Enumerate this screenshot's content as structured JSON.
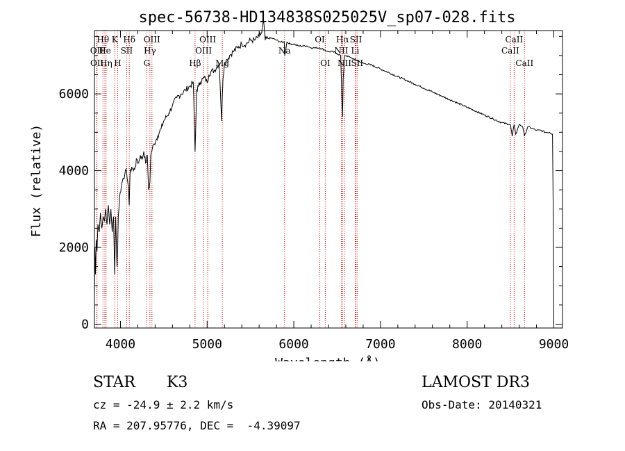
{
  "chart_data": {
    "type": "line",
    "title": "spec-56738-HD134838S025025V_sp07-028.fits",
    "xlabel": "Wavelength (Å)",
    "ylabel": "Flux (relative)",
    "xlim": [
      3700,
      9100
    ],
    "ylim": [
      -100,
      7650
    ],
    "xticks": [
      4000,
      5000,
      6000,
      7000,
      8000,
      9000
    ],
    "yticks": [
      0,
      2000,
      4000,
      6000
    ],
    "series": [
      {
        "name": "flux",
        "x": [
          3700,
          3705,
          3712,
          3720,
          3730,
          3740,
          3755,
          3770,
          3785,
          3800,
          3815,
          3830,
          3845,
          3860,
          3875,
          3890,
          3905,
          3920,
          3933,
          3945,
          3960,
          3968,
          3975,
          3990,
          4010,
          4030,
          4050,
          4070,
          4090,
          4101,
          4110,
          4130,
          4150,
          4170,
          4190,
          4210,
          4230,
          4250,
          4270,
          4290,
          4310,
          4325,
          4340,
          4350,
          4370,
          4390,
          4410,
          4430,
          4450,
          4470,
          4500,
          4530,
          4560,
          4600,
          4650,
          4700,
          4750,
          4800,
          4840,
          4861,
          4880,
          4900,
          4920,
          4950,
          4980,
          5000,
          5020,
          5050,
          5080,
          5110,
          5140,
          5167,
          5183,
          5200,
          5230,
          5260,
          5300,
          5350,
          5400,
          5450,
          5500,
          5550,
          5600,
          5630,
          5650,
          5670,
          5700,
          5750,
          5800,
          5850,
          5890,
          5896,
          5920,
          5960,
          6000,
          6050,
          6100,
          6150,
          6200,
          6250,
          6300,
          6350,
          6400,
          6450,
          6500,
          6540,
          6555,
          6563,
          6570,
          6585,
          6600,
          6650,
          6700,
          6750,
          6800,
          6900,
          7000,
          7100,
          7200,
          7300,
          7400,
          7500,
          7600,
          7700,
          7800,
          7900,
          8000,
          8100,
          8200,
          8300,
          8400,
          8498,
          8520,
          8542,
          8560,
          8600,
          8640,
          8662,
          8700,
          8750,
          8800,
          8850,
          8900,
          8950,
          8985,
          8993,
          8997,
          9000
        ],
        "values": [
          700,
          2000,
          1300,
          2200,
          1900,
          2600,
          2400,
          2900,
          2500,
          2800,
          2700,
          3000,
          2600,
          3100,
          2600,
          3000,
          2400,
          2800,
          1300,
          2800,
          1500,
          2000,
          2800,
          3300,
          3600,
          3800,
          3900,
          4000,
          3600,
          3100,
          3900,
          4100,
          4000,
          4100,
          4300,
          4200,
          4400,
          4300,
          4500,
          4200,
          4400,
          3500,
          3700,
          4400,
          4600,
          4700,
          4800,
          4900,
          5000,
          5100,
          5300,
          5400,
          5500,
          5700,
          5900,
          6000,
          6100,
          6200,
          6300,
          4500,
          6100,
          6200,
          6300,
          6400,
          6400,
          6300,
          6500,
          6600,
          6600,
          6700,
          6800,
          5300,
          6400,
          6800,
          6900,
          7000,
          7100,
          7200,
          7300,
          7300,
          7400,
          7400,
          7500,
          7600,
          7900,
          7400,
          7450,
          7450,
          7400,
          7350,
          7350,
          7000,
          7350,
          7300,
          7300,
          7250,
          7250,
          7250,
          7200,
          7200,
          7200,
          7150,
          7100,
          7100,
          7050,
          7000,
          5900,
          5400,
          6400,
          7000,
          7000,
          6950,
          6900,
          6850,
          6800,
          6750,
          6650,
          6550,
          6450,
          6350,
          6250,
          6150,
          6050,
          5950,
          5850,
          5750,
          5650,
          5550,
          5450,
          5350,
          5250,
          5200,
          4900,
          5200,
          4950,
          5200,
          5150,
          4900,
          5150,
          5100,
          5050,
          5050,
          5000,
          5000,
          4950,
          3000,
          1800,
          0
        ]
      }
    ],
    "line_markers": [
      {
        "label": "Hθ",
        "wavelength": 3798,
        "row": 1
      },
      {
        "label": "OII",
        "wavelength": 3727,
        "row": 2
      },
      {
        "label": "OII",
        "wavelength": 3729,
        "row": 3
      },
      {
        "label": "He",
        "wavelength": 3820,
        "row": 2
      },
      {
        "label": "Hη",
        "wavelength": 3835,
        "row": 3
      },
      {
        "label": "K",
        "wavelength": 3934,
        "row": 1
      },
      {
        "label": "SII",
        "wavelength": 4072,
        "row": 2
      },
      {
        "label": "Hδ",
        "wavelength": 4102,
        "row": 1
      },
      {
        "label": "H",
        "wavelength": 3968,
        "row": 3
      },
      {
        "label": "OIII",
        "wavelength": 4363,
        "row": 1
      },
      {
        "label": "Hγ",
        "wavelength": 4340,
        "row": 2
      },
      {
        "label": "G",
        "wavelength": 4305,
        "row": 3
      },
      {
        "label": "OIII",
        "wavelength": 5007,
        "row": 1
      },
      {
        "label": "OIII",
        "wavelength": 4959,
        "row": 2
      },
      {
        "label": "Hβ",
        "wavelength": 4861,
        "row": 3
      },
      {
        "label": "Mg",
        "wavelength": 5175,
        "row": 3
      },
      {
        "label": "Na",
        "wavelength": 5893,
        "row": 2
      },
      {
        "label": "OI",
        "wavelength": 6300,
        "row": 1
      },
      {
        "label": "OI",
        "wavelength": 6363,
        "row": 3
      },
      {
        "label": "Hα",
        "wavelength": 6563,
        "row": 1
      },
      {
        "label": "NII",
        "wavelength": 6548,
        "row": 2
      },
      {
        "label": "NII",
        "wavelength": 6584,
        "row": 3
      },
      {
        "label": "SII",
        "wavelength": 6717,
        "row": 1
      },
      {
        "label": "Li",
        "wavelength": 6708,
        "row": 2
      },
      {
        "label": "SII",
        "wavelength": 6731,
        "row": 3
      },
      {
        "label": "CaII",
        "wavelength": 8542,
        "row": 1
      },
      {
        "label": "CaII",
        "wavelength": 8498,
        "row": 2
      },
      {
        "label": "CaII",
        "wavelength": 8662,
        "row": 3
      }
    ]
  },
  "info": {
    "object_type": "STAR",
    "subclass": "K3",
    "survey": "LAMOST DR3",
    "redshift_text": "cz = -24.9 ± 2.2 km/s",
    "obs_date_text": "Obs-Date: 20140321",
    "coords_text": "RA = 207.95776, DEC =  -4.39097"
  }
}
